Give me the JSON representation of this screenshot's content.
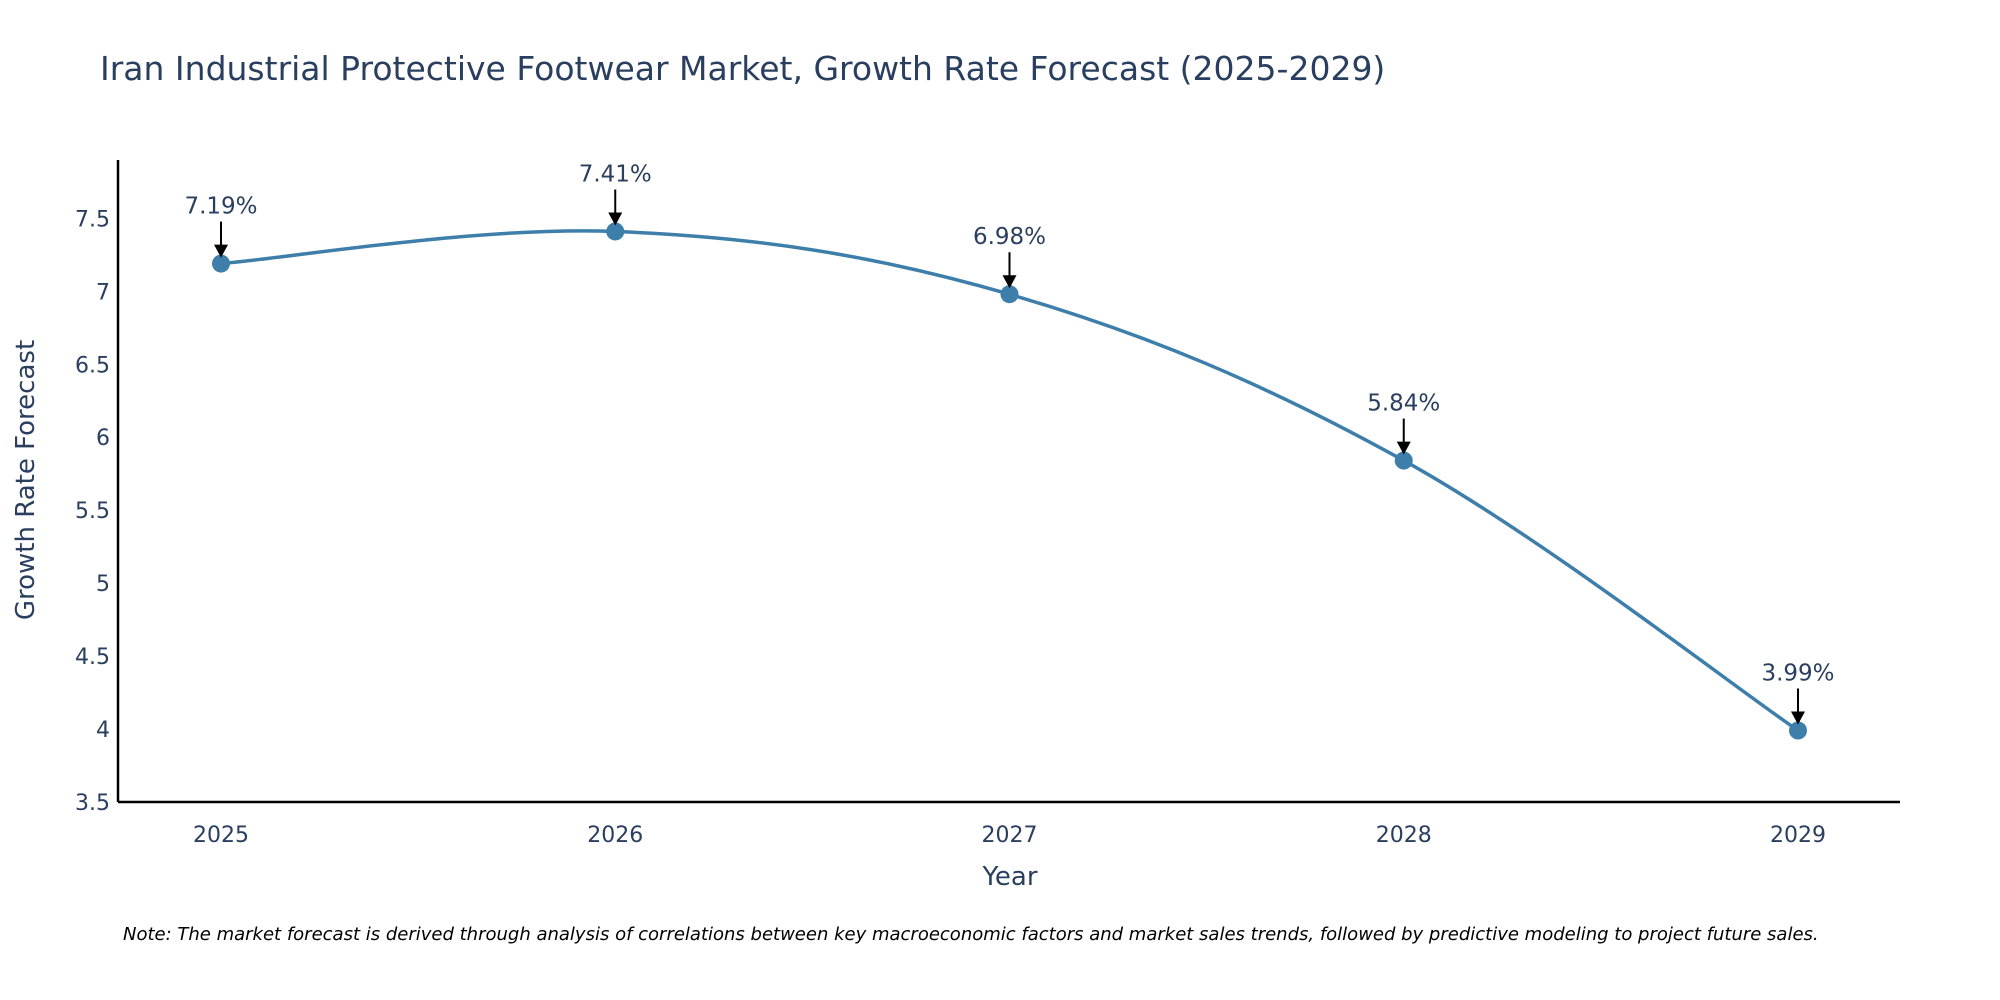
{
  "chart_data": {
    "type": "line",
    "title": "Iran Industrial Protective Footwear Market, Growth Rate Forecast (2025-2029)",
    "xlabel": "Year",
    "ylabel": "Growth Rate Forecast",
    "categories": [
      "2025",
      "2026",
      "2027",
      "2028",
      "2029"
    ],
    "values": [
      7.19,
      7.41,
      6.98,
      5.84,
      3.99
    ],
    "labels": [
      "7.19%",
      "7.41%",
      "6.98%",
      "5.84%",
      "3.99%"
    ],
    "yticks": [
      3.5,
      4,
      4.5,
      5,
      5.5,
      6,
      6.5,
      7,
      7.5
    ],
    "ytick_labels": [
      "3.5",
      "4",
      "4.5",
      "5",
      "5.5",
      "6",
      "6.5",
      "7",
      "7.5"
    ],
    "ylim": [
      3.5,
      7.9
    ],
    "grid": false,
    "line_shape": "spline",
    "colors": {
      "line": "#3d7eaa",
      "marker": "#3d7eaa",
      "arrow": "#000000",
      "text": "#2a3f5f",
      "axis": "#000000"
    }
  },
  "note": "Note: The market forecast is derived through analysis of correlations between key macroeconomic factors and market sales trends, followed by predictive modeling to project future sales."
}
